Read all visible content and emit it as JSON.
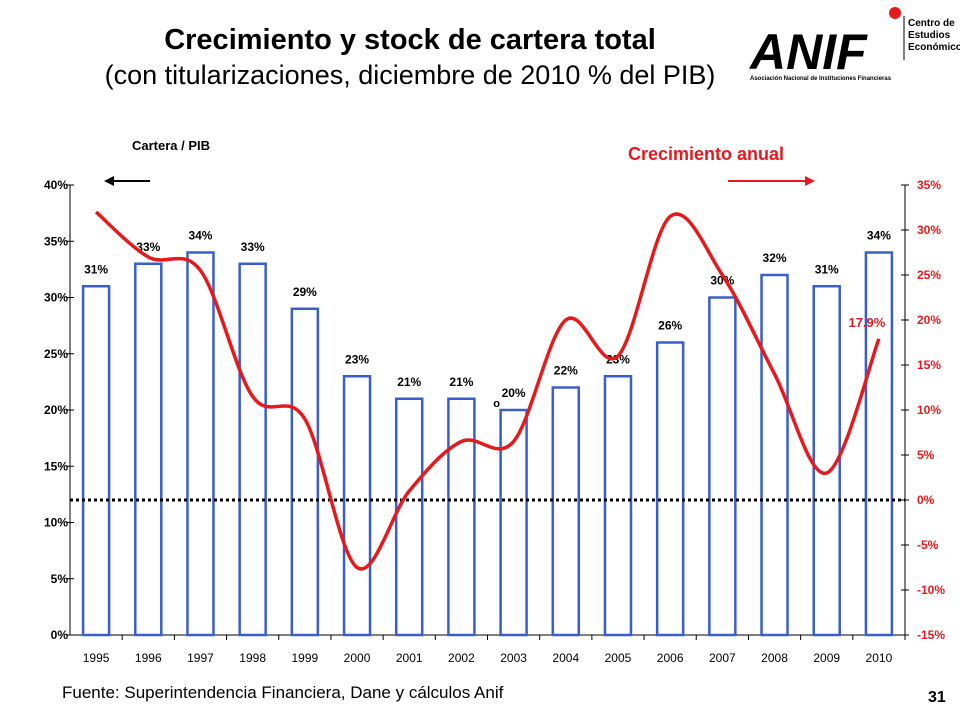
{
  "title": "Crecimiento y stock de cartera total",
  "subtitle": "(con titularizaciones, diciembre de 2010 % del PIB)",
  "logo": {
    "name": "ANIF",
    "tagline": "Asociación Nacional de Instituciones Financieras",
    "side_text_1": "Centro de",
    "side_text_2": "Estudios",
    "side_text_3": "Económicos",
    "color": "#000000",
    "accent": "#e41a1c"
  },
  "legend_left": "Cartera / PIB",
  "legend_right": "Crecimiento anual",
  "source": "Fuente: Superintendencia Financiera, Dane y cálculos Anif",
  "page_number": "31",
  "chart_data": {
    "type": "bar+line",
    "categories": [
      "1995",
      "1996",
      "1997",
      "1998",
      "1999",
      "2000",
      "2001",
      "2002",
      "2003",
      "2004",
      "2005",
      "2006",
      "2007",
      "2008",
      "2009",
      "2010"
    ],
    "series": [
      {
        "name": "Cartera / PIB",
        "type": "bar",
        "axis": "left",
        "values": [
          31,
          33,
          34,
          33,
          29,
          23,
          21,
          21,
          20,
          22,
          23,
          26,
          30,
          32,
          31,
          34
        ],
        "labels": [
          "31%",
          "33%",
          "34%",
          "33%",
          "29%",
          "23%",
          "21%",
          "21%",
          "20%",
          "22%",
          "23%",
          "26%",
          "30%",
          "32%",
          "31%",
          "34%"
        ],
        "color": "#3a5fcd"
      },
      {
        "name": "Crecimiento anual",
        "type": "line",
        "axis": "right",
        "values": [
          32,
          27,
          25.5,
          11.5,
          9,
          -7.5,
          1,
          6.5,
          6.5,
          20,
          16,
          31.5,
          25,
          14,
          3,
          17.9
        ],
        "end_label": "17.9%",
        "color": "#e41a1c"
      }
    ],
    "left_axis": {
      "ticks": [
        "0%",
        "5%",
        "10%",
        "15%",
        "20%",
        "25%",
        "30%",
        "35%",
        "40%"
      ],
      "ylim": [
        0,
        40
      ]
    },
    "right_axis": {
      "ticks": [
        "-15%",
        "-10%",
        "-5%",
        "0%",
        "5%",
        "10%",
        "15%",
        "20%",
        "25%",
        "30%",
        "35%"
      ],
      "ylim": [
        -15,
        35
      ]
    },
    "zero_line": "dotted",
    "grid": false,
    "stray_mark": "o"
  }
}
